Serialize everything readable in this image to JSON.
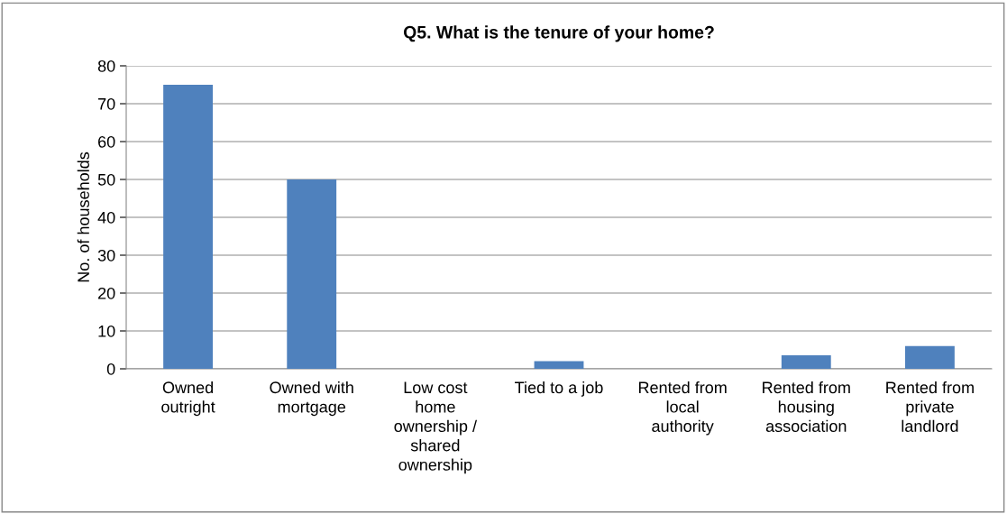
{
  "chart_data": {
    "type": "bar",
    "title": "Q5. What is the tenure of your home?",
    "ylabel": "No. of households",
    "categories": [
      "Owned\noutright",
      "Owned with\nmortgage",
      "Low cost\nhome\nownership /\nshared\nownership",
      "Tied to a job",
      "Rented from\nlocal\nauthority",
      "Rented from\nhousing\nassociation",
      "Rented from\nprivate\nlandlord"
    ],
    "values": [
      75,
      50,
      0,
      2,
      0,
      3.6,
      6
    ],
    "color": "#4f81bd",
    "ylim": [
      0,
      80
    ],
    "yticks": [
      0,
      10,
      20,
      30,
      40,
      50,
      60,
      70,
      80
    ],
    "grid": "y",
    "legend": false
  }
}
